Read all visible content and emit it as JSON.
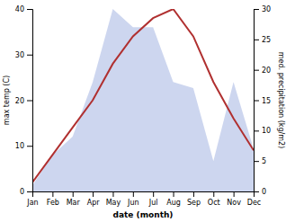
{
  "chart_data": {
    "type": "line",
    "categories": [
      "Jan",
      "Feb",
      "Mar",
      "Apr",
      "May",
      "Jun",
      "Jul",
      "Aug",
      "Sep",
      "Oct",
      "Nov",
      "Dec"
    ],
    "xlabel": "date (month)",
    "ylabel": "max temp (C)",
    "y2label": "med. precipitation (kg/m2)",
    "ylim": [
      0,
      40
    ],
    "yticks": [
      0,
      10,
      20,
      30,
      40
    ],
    "y2lim": [
      0,
      30
    ],
    "y2ticks": [
      0,
      5,
      10,
      15,
      20,
      25,
      30
    ],
    "series": [
      {
        "type": "area",
        "axis": "y2",
        "color": "#b8c4e8",
        "values": [
          1,
          6,
          9,
          18,
          30,
          27,
          27,
          18,
          17,
          5,
          18,
          7
        ]
      },
      {
        "type": "line",
        "color": "#b03030",
        "values": [
          2,
          8,
          14,
          20,
          28,
          34,
          38,
          40,
          34,
          24,
          16,
          9
        ]
      }
    ]
  }
}
